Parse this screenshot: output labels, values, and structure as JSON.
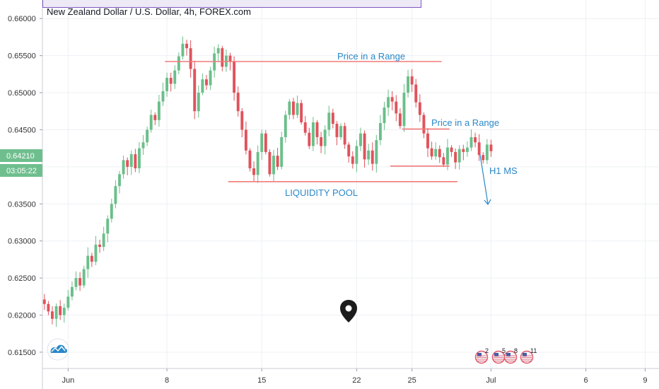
{
  "header": {
    "title": "New Zealand Dollar / U.S. Dollar, 4h, FOREX.com"
  },
  "price_scale": {
    "current_price": "0.64210",
    "countdown": "03:05:22"
  },
  "colors": {
    "up": "#6bbf8a",
    "down": "#e0535c",
    "line": "#f27a7a",
    "annotation": "#2a88c9",
    "grid": "#eef0f4",
    "badge_bg": "#6fbf8e"
  },
  "icons": {
    "logo": "cloud-logo-icon",
    "pin": "location-pin-icon"
  },
  "events": [
    "2",
    "5",
    "8",
    "11"
  ],
  "chart_data": {
    "type": "candlestick",
    "title": "New Zealand Dollar / U.S. Dollar, 4h, FOREX.com",
    "ylim": [
      0.6128,
      0.6625
    ],
    "yticks": [
      "0.66000",
      "0.65500",
      "0.65000",
      "0.64500",
      "0.64000",
      "0.63500",
      "0.63000",
      "0.62500",
      "0.62000",
      "0.61500"
    ],
    "ytick_values": [
      0.66,
      0.655,
      0.65,
      0.645,
      0.64,
      0.635,
      0.63,
      0.625,
      0.62,
      0.615
    ],
    "xticks": [
      "Jun",
      "8",
      "15",
      "22",
      "25",
      "Jul",
      "6",
      "9"
    ],
    "xtick_index": [
      6,
      31,
      55,
      79,
      93,
      113,
      137,
      152
    ],
    "n_bars": 156,
    "close": [
      0.6215,
      0.6205,
      0.6195,
      0.6212,
      0.62,
      0.621,
      0.6225,
      0.6238,
      0.625,
      0.624,
      0.6262,
      0.628,
      0.6272,
      0.6295,
      0.6292,
      0.631,
      0.633,
      0.635,
      0.6374,
      0.639,
      0.6409,
      0.64,
      0.6417,
      0.6398,
      0.6425,
      0.6433,
      0.645,
      0.647,
      0.6463,
      0.6488,
      0.6502,
      0.652,
      0.6512,
      0.653,
      0.6549,
      0.6566,
      0.656,
      0.6532,
      0.6475,
      0.65,
      0.6518,
      0.651,
      0.653,
      0.6553,
      0.656,
      0.6535,
      0.655,
      0.6542,
      0.65,
      0.6475,
      0.645,
      0.6422,
      0.6398,
      0.6389,
      0.642,
      0.6445,
      0.642,
      0.639,
      0.6415,
      0.64,
      0.644,
      0.647,
      0.6488,
      0.647,
      0.6486,
      0.646,
      0.6446,
      0.6428,
      0.646,
      0.644,
      0.6428,
      0.645,
      0.6473,
      0.6458,
      0.644,
      0.6455,
      0.643,
      0.6414,
      0.6404,
      0.6428,
      0.6445,
      0.641,
      0.6422,
      0.6404,
      0.6436,
      0.6459,
      0.648,
      0.6494,
      0.6488,
      0.6472,
      0.6455,
      0.65,
      0.6522,
      0.6511,
      0.6487,
      0.647,
      0.6445,
      0.6425,
      0.6414,
      0.6424,
      0.6413,
      0.6403,
      0.6426,
      0.642,
      0.6406,
      0.6424,
      0.642,
      0.6426,
      0.644,
      0.6433,
      0.6416,
      0.6409,
      0.643,
      0.6421
    ],
    "line_annotations": [
      {
        "label": "Price in a Range",
        "x0": 31,
        "x1": 101,
        "y": 0.6542
      },
      {
        "label": "Price in a Range",
        "x0": 91,
        "x1": 103,
        "y": 0.6451
      },
      {
        "label": "H1 MS",
        "x0": 88,
        "x1": 103,
        "y": 0.6401
      },
      {
        "label": "LIQUIDITY POOL",
        "x0": 47,
        "x1": 105,
        "y": 0.638
      }
    ]
  },
  "annotations": {
    "range_top": "Price in a Range",
    "range_small": "Price in a Range",
    "h1_ms": "H1 MS",
    "liquidity": "LIQUIDITY POOL"
  }
}
